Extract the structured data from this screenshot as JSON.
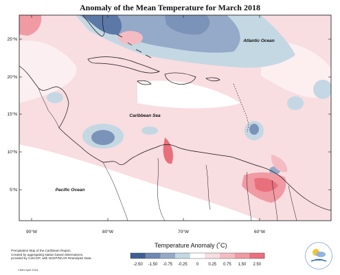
{
  "title": "Anomaly of the Mean Temperature for March 2018",
  "labels": {
    "atlantic": "Atlantic Ocean",
    "caribbean": "Caribbean Sea",
    "pacific": "Pacific Ocean"
  },
  "axes": {
    "lat_ticks": [
      "25°N",
      "20°N",
      "15°N",
      "10°N",
      "5°N"
    ],
    "lon_ticks": [
      "90°W",
      "80°W",
      "70°W",
      "60°W"
    ]
  },
  "legend": {
    "title": "Temperature Anomaly (˚C)",
    "tick_labels": [
      "-2.50",
      "-1.50",
      "-0.75",
      "-0.25",
      "0",
      "0.25",
      "0.75",
      "1.50",
      "2.50"
    ],
    "colors": [
      "#3f5f93",
      "#6f89b3",
      "#95a9c8",
      "#c3d8e3",
      "#ffffff",
      "#f8dde1",
      "#f4bcc2",
      "#f09aa3",
      "#e8707d"
    ]
  },
  "footnote": [
    "Precipitation Map of the Caribbean Region.",
    "Created by aggregating station based observations,",
    "provided by CariCOF, with NCEP/NCAR Reanalysis Data."
  ],
  "credit": "CIMH April 2018",
  "logo": {
    "text": "CIMH"
  },
  "colors": {
    "warm_light": "#f8dde1",
    "warm_mid": "#f4bcc2",
    "warm_strong": "#e8707d",
    "cool_light": "#c3d8e3",
    "cool_mid": "#95a9c8",
    "cool_strong": "#5b78a6"
  }
}
